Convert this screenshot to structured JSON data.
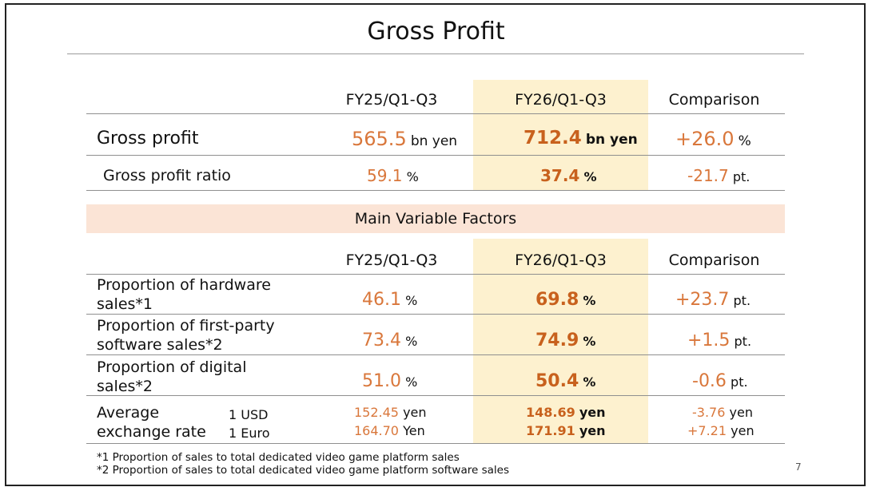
{
  "title": "Gross Profit",
  "columns": {
    "prev": "FY25/Q1-Q3",
    "curr": "FY26/Q1-Q3",
    "comp": "Comparison"
  },
  "top_rows": [
    {
      "label": "Gross profit",
      "prev_value": "565.5",
      "prev_unit": "bn yen",
      "curr_value": "712.4",
      "curr_unit": "bn yen",
      "comp_value": "+26.0",
      "comp_unit": "%"
    },
    {
      "label": "Gross profit ratio",
      "prev_value": "59.1",
      "prev_unit": "%",
      "curr_value": "37.4",
      "curr_unit": "%",
      "comp_value": "-21.7",
      "comp_unit": "pt."
    }
  ],
  "factors_title": "Main Variable Factors",
  "factor_rows": [
    {
      "label_line1": "Proportion of hardware",
      "label_line2": "sales*1",
      "prev_value": "46.1",
      "prev_unit": "%",
      "curr_value": "69.8",
      "curr_unit": "%",
      "comp_value": "+23.7",
      "comp_unit": "pt."
    },
    {
      "label_line1": "Proportion of first-party",
      "label_line2": "software sales*2",
      "prev_value": "73.4",
      "prev_unit": "%",
      "curr_value": "74.9",
      "curr_unit": "%",
      "comp_value": "+1.5",
      "comp_unit": "pt."
    },
    {
      "label_line1": "Proportion of digital",
      "label_line2": "sales*2",
      "prev_value": "51.0",
      "prev_unit": "%",
      "curr_value": "50.4",
      "curr_unit": "%",
      "comp_value": "-0.6",
      "comp_unit": "pt."
    }
  ],
  "exchange": {
    "label_line1": "Average",
    "label_line2": "exchange rate",
    "rates": [
      {
        "currency": "1 USD",
        "prev_value": "152.45",
        "prev_unit": "yen",
        "curr_value": "148.69",
        "curr_unit": "yen",
        "comp_value": "-3.76",
        "comp_unit": "yen"
      },
      {
        "currency": "1 Euro",
        "prev_value": "164.70",
        "prev_unit": "Yen",
        "curr_value": "171.91",
        "curr_unit": "yen",
        "comp_value": "+7.21",
        "comp_unit": "yen"
      }
    ]
  },
  "footnotes": [
    "*1 Proportion of sales to total dedicated video game platform sales",
    "*2 Proportion of sales to total dedicated video game platform software sales"
  ],
  "page_number": "7",
  "colors": {
    "accent_orange": "#d9773b",
    "highlight_column": "#fdf1cf",
    "band": "#fbe4d6"
  }
}
